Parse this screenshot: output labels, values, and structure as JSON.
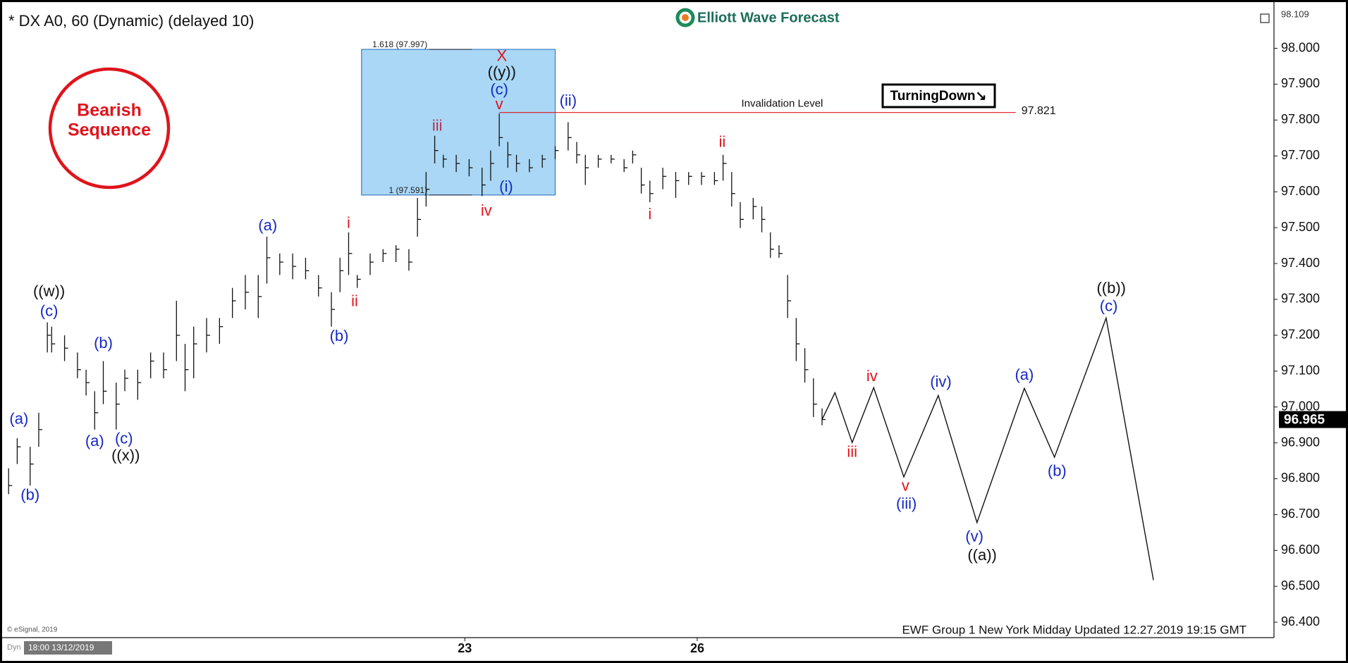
{
  "chart_data": {
    "type": "ohlc",
    "title": "* DX A0, 60 (Dynamic) (delayed 10)",
    "logo": "Elliott Wave Forecast",
    "badge": [
      "Bearish",
      "Sequence"
    ],
    "signal": "TurningDown↘",
    "footer": "EWF Group 1 New York Midday Updated 12.27.2019 19:15 GMT",
    "copyright": "© eSignal, 2019",
    "mode_label": "Dyn",
    "x_start_label": "18:00 13/12/2019",
    "axis_top": 98.109,
    "xlim": [
      0,
      296
    ],
    "ylim": [
      96.357,
      98.115
    ],
    "xticks": [
      {
        "value": 108,
        "label": "23"
      },
      {
        "value": 162,
        "label": "26"
      }
    ],
    "yticks": [
      {
        "value": 96.4,
        "label": "96.400"
      },
      {
        "value": 96.5,
        "label": "96.500"
      },
      {
        "value": 96.6,
        "label": "96.600"
      },
      {
        "value": 96.7,
        "label": "96.700"
      },
      {
        "value": 96.8,
        "label": "96.800"
      },
      {
        "value": 96.9,
        "label": "96.900"
      },
      {
        "value": 97.0,
        "label": "97.000"
      },
      {
        "value": 97.1,
        "label": "97.100"
      },
      {
        "value": 97.2,
        "label": "97.200"
      },
      {
        "value": 97.3,
        "label": "97.300"
      },
      {
        "value": 97.4,
        "label": "97.400"
      },
      {
        "value": 97.5,
        "label": "97.500"
      },
      {
        "value": 97.6,
        "label": "97.600"
      },
      {
        "value": 97.7,
        "label": "97.700"
      },
      {
        "value": 97.8,
        "label": "97.800"
      },
      {
        "value": 97.9,
        "label": "97.900"
      },
      {
        "value": 98.0,
        "label": "98.000"
      }
    ],
    "bars": {
      "color": "#111111",
      "x": [
        2,
        4,
        7,
        9,
        11,
        12,
        15,
        18,
        20,
        22,
        24,
        27,
        29,
        32,
        35,
        38,
        41,
        43,
        45,
        48,
        51,
        54,
        57,
        60,
        62,
        65,
        68,
        71,
        74,
        77,
        79,
        81,
        83,
        86,
        89,
        92,
        95,
        97,
        99,
        101,
        103,
        106,
        109,
        112,
        114,
        116,
        118,
        120,
        123,
        126,
        129,
        132,
        134,
        136,
        139,
        142,
        145,
        147,
        149,
        151,
        154,
        157,
        160,
        163,
        166,
        168,
        170,
        172,
        175,
        177,
        179,
        181,
        183,
        185,
        187,
        189,
        191
      ],
      "high": [
        96.829,
        96.913,
        96.889,
        96.984,
        97.236,
        97.224,
        97.2,
        97.152,
        97.104,
        97.044,
        97.128,
        97.068,
        97.104,
        97.104,
        97.152,
        97.152,
        97.296,
        97.176,
        97.224,
        97.248,
        97.248,
        97.332,
        97.368,
        97.368,
        97.475,
        97.428,
        97.428,
        97.416,
        97.368,
        97.32,
        97.416,
        97.487,
        97.368,
        97.428,
        97.44,
        97.451,
        97.44,
        97.583,
        97.655,
        97.756,
        97.703,
        97.703,
        97.691,
        97.667,
        97.715,
        97.818,
        97.739,
        97.703,
        97.691,
        97.703,
        97.727,
        97.794,
        97.739,
        97.703,
        97.703,
        97.703,
        97.691,
        97.715,
        97.667,
        97.631,
        97.667,
        97.655,
        97.655,
        97.655,
        97.655,
        97.703,
        97.655,
        97.571,
        97.583,
        97.559,
        97.487,
        97.451,
        97.368,
        97.248,
        97.164,
        97.08,
        96.996
      ],
      "low": [
        96.757,
        96.841,
        96.781,
        96.889,
        97.152,
        97.152,
        97.128,
        97.08,
        97.032,
        96.937,
        97.008,
        96.937,
        97.044,
        97.02,
        97.08,
        97.08,
        97.128,
        97.044,
        97.08,
        97.152,
        97.176,
        97.248,
        97.272,
        97.248,
        97.344,
        97.368,
        97.356,
        97.356,
        97.308,
        97.224,
        97.32,
        97.368,
        97.332,
        97.368,
        97.404,
        97.404,
        97.38,
        97.475,
        97.559,
        97.679,
        97.667,
        97.655,
        97.643,
        97.588,
        97.631,
        97.727,
        97.667,
        97.655,
        97.655,
        97.667,
        97.691,
        97.715,
        97.679,
        97.619,
        97.667,
        97.679,
        97.655,
        97.679,
        97.595,
        97.571,
        97.607,
        97.583,
        97.619,
        97.619,
        97.619,
        97.631,
        97.559,
        97.499,
        97.523,
        97.487,
        97.416,
        97.416,
        97.248,
        97.128,
        97.068,
        96.972,
        96.949
      ],
      "close": [
        96.781,
        96.889,
        96.841,
        96.937,
        97.2,
        97.176,
        97.164,
        97.104,
        97.068,
        96.984,
        97.044,
        97.008,
        97.08,
        97.068,
        97.128,
        97.104,
        97.2,
        97.104,
        97.176,
        97.2,
        97.224,
        97.296,
        97.32,
        97.308,
        97.416,
        97.404,
        97.392,
        97.38,
        97.332,
        97.272,
        97.38,
        97.428,
        97.356,
        97.404,
        97.428,
        97.44,
        97.404,
        97.523,
        97.607,
        97.715,
        97.691,
        97.679,
        97.667,
        97.619,
        97.679,
        97.751,
        97.703,
        97.679,
        97.667,
        97.691,
        97.715,
        97.751,
        97.703,
        97.667,
        97.691,
        97.691,
        97.667,
        97.703,
        97.619,
        97.595,
        97.643,
        97.631,
        97.643,
        97.643,
        97.631,
        97.679,
        97.595,
        97.523,
        97.559,
        97.523,
        97.44,
        97.428,
        97.296,
        97.176,
        97.104,
        97.008,
        96.965
      ]
    },
    "last_price": 96.965,
    "projection": {
      "color": "#111111",
      "x": [
        191,
        194,
        198,
        203,
        210,
        218,
        227,
        238,
        245,
        257,
        268
      ],
      "y": [
        96.965,
        97.04,
        96.901,
        97.054,
        96.805,
        97.032,
        96.678,
        97.052,
        96.86,
        97.248,
        96.517
      ]
    },
    "fib_box": {
      "color": "#a9d7f5",
      "x": [
        84,
        129
      ],
      "levels": [
        {
          "value": 97.997,
          "label": "1.618 (97.997)"
        },
        {
          "value": 97.591,
          "label": "1 (97.591)"
        }
      ]
    },
    "invalidation": {
      "label": "Invalidation Level",
      "value": 97.821,
      "x": [
        116,
        236
      ],
      "color": "#e0141c"
    },
    "annotations": [
      {
        "text": "((w))",
        "x": 11.4,
        "y": 97.32,
        "color": "#111111"
      },
      {
        "text": "(c)",
        "x": 11.4,
        "y": 97.265,
        "color": "#1428c8"
      },
      {
        "text": "(a)",
        "x": 4.4,
        "y": 96.965,
        "color": "#1428c8"
      },
      {
        "text": "(b)",
        "x": 7,
        "y": 96.752,
        "color": "#1428c8"
      },
      {
        "text": "(a)",
        "x": 22,
        "y": 96.903,
        "color": "#1428c8"
      },
      {
        "text": "(b)",
        "x": 24,
        "y": 97.176,
        "color": "#1428c8"
      },
      {
        "text": "(c)",
        "x": 28.8,
        "y": 96.91,
        "color": "#1428c8"
      },
      {
        "text": "((x))",
        "x": 29.2,
        "y": 96.862,
        "color": "#111111"
      },
      {
        "text": "(a)",
        "x": 62.2,
        "y": 97.504,
        "color": "#1428c8"
      },
      {
        "text": "(b)",
        "x": 78.8,
        "y": 97.195,
        "color": "#1428c8"
      },
      {
        "text": "i",
        "x": 81,
        "y": 97.511,
        "color": "#e0141c"
      },
      {
        "text": "ii",
        "x": 82.4,
        "y": 97.293,
        "color": "#e0141c"
      },
      {
        "text": "iii",
        "x": 101.6,
        "y": 97.782,
        "color": "#b83050"
      },
      {
        "text": "iv",
        "x": 113,
        "y": 97.545,
        "color": "#e0141c"
      },
      {
        "text": "v",
        "x": 116,
        "y": 97.842,
        "color": "#e0141c"
      },
      {
        "text": "(c)",
        "x": 116,
        "y": 97.883,
        "color": "#1428c8"
      },
      {
        "text": "((y))",
        "x": 116.6,
        "y": 97.931,
        "color": "#111111"
      },
      {
        "text": "X",
        "x": 116.6,
        "y": 97.976,
        "color": "#e0141c"
      },
      {
        "text": "(i)",
        "x": 117.6,
        "y": 97.612,
        "color": "#1428c8"
      },
      {
        "text": "(ii)",
        "x": 132,
        "y": 97.851,
        "color": "#1428c8"
      },
      {
        "text": "i",
        "x": 151,
        "y": 97.535,
        "color": "#e0141c"
      },
      {
        "text": "ii",
        "x": 167.8,
        "y": 97.737,
        "color": "#e0141c"
      },
      {
        "text": "iii",
        "x": 198,
        "y": 96.872,
        "color": "#e0141c"
      },
      {
        "text": "iv",
        "x": 202.6,
        "y": 97.083,
        "color": "#e0141c"
      },
      {
        "text": "v",
        "x": 210.4,
        "y": 96.778,
        "color": "#e0141c"
      },
      {
        "text": "(iii)",
        "x": 210.6,
        "y": 96.728,
        "color": "#1428c8"
      },
      {
        "text": "(iv)",
        "x": 218.6,
        "y": 97.068,
        "color": "#1428c8"
      },
      {
        "text": "(v)",
        "x": 226.4,
        "y": 96.637,
        "color": "#1428c8"
      },
      {
        "text": "((a))",
        "x": 228.2,
        "y": 96.584,
        "color": "#111111"
      },
      {
        "text": "(a)",
        "x": 238,
        "y": 97.087,
        "color": "#1428c8"
      },
      {
        "text": "(b)",
        "x": 245.6,
        "y": 96.819,
        "color": "#1428c8"
      },
      {
        "text": "((b))",
        "x": 258.2,
        "y": 97.329,
        "color": "#111111"
      },
      {
        "text": "(c)",
        "x": 257.6,
        "y": 97.279,
        "color": "#1428c8"
      }
    ]
  }
}
